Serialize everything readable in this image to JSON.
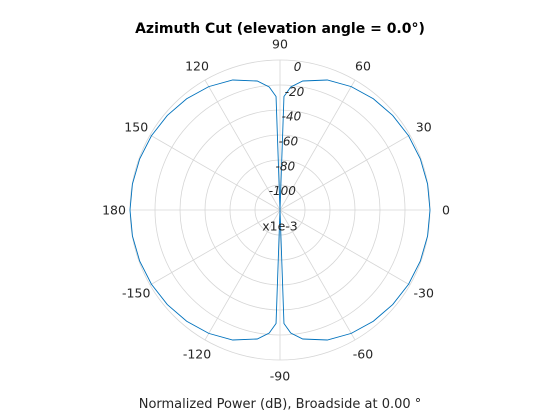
{
  "chart_data": {
    "type": "polar",
    "title": "Azimuth Cut (elevation angle = 0.0°)",
    "footer_label": "Normalized Power (dB), Broadside at 0.00 °",
    "scale_label": "x1e-3",
    "angle_ticks": [
      {
        "deg": 0,
        "label": "0"
      },
      {
        "deg": 30,
        "label": "30"
      },
      {
        "deg": 60,
        "label": "60"
      },
      {
        "deg": 90,
        "label": "90"
      },
      {
        "deg": 120,
        "label": "120"
      },
      {
        "deg": 150,
        "label": "150"
      },
      {
        "deg": 180,
        "label": "180"
      },
      {
        "deg": 210,
        "label": "-150"
      },
      {
        "deg": 240,
        "label": "-120"
      },
      {
        "deg": 270,
        "label": "-90"
      },
      {
        "deg": 300,
        "label": "-60"
      },
      {
        "deg": 330,
        "label": "-30"
      }
    ],
    "r_ticks": [
      {
        "value": 0,
        "label": "0"
      },
      {
        "value": -20,
        "label": "-20"
      },
      {
        "value": -40,
        "label": "-40"
      },
      {
        "value": -60,
        "label": "-60"
      },
      {
        "value": -80,
        "label": "-80"
      },
      {
        "value": -100,
        "label": "-100"
      }
    ],
    "rlim": [
      -120,
      0
    ],
    "grid": true,
    "series": [
      {
        "color": "#0072BD",
        "pattern": "dipole (cos² in power)",
        "angle_deg": [
          0,
          10,
          20,
          30,
          40,
          50,
          60,
          70,
          80,
          85,
          88,
          90,
          92,
          95,
          100,
          110,
          120,
          130,
          140,
          150,
          160,
          170,
          180,
          190,
          200,
          210,
          220,
          230,
          240,
          250,
          260,
          265,
          268,
          270,
          272,
          275,
          280,
          290,
          300,
          310,
          320,
          330,
          340,
          350
        ],
        "power_db": [
          0,
          -0.13,
          -0.54,
          -1.25,
          -2.32,
          -3.84,
          -6.02,
          -9.32,
          -15.21,
          -21.19,
          -29.17,
          -120,
          -29.17,
          -21.19,
          -15.21,
          -9.32,
          -6.02,
          -3.84,
          -2.32,
          -1.25,
          -0.54,
          -0.13,
          0,
          -0.13,
          -0.54,
          -1.25,
          -2.32,
          -3.84,
          -6.02,
          -9.32,
          -15.21,
          -21.19,
          -29.17,
          -120,
          -29.17,
          -21.19,
          -15.21,
          -9.32,
          -6.02,
          -3.84,
          -2.32,
          -1.25,
          -0.54,
          -0.13
        ]
      }
    ]
  }
}
